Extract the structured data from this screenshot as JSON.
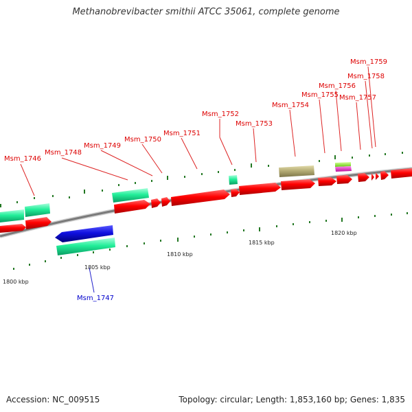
{
  "title": "Methanobrevibacter smithii ATCC 35061, complete genome",
  "footer": {
    "accession": "Accession: NC_009515",
    "summary": "Topology: circular; Length: 1,853,160 bp; Genes: 1,835"
  },
  "colors": {
    "forward_gene": "#ff0000",
    "reverse_gene": "#1010e0",
    "highlight_gene": "#22ee99",
    "tan_gene": "#b5ad75",
    "lime_gene": "#88ee22",
    "magenta_gene": "#ee22cc",
    "backbone": "#888888",
    "tick": "#227722",
    "label_forward": "#dd0000",
    "label_reverse": "#0000cc"
  },
  "axis": {
    "unit": "kbp",
    "tick_labels": [
      {
        "kbp": 1800,
        "text": "1800 kbp"
      },
      {
        "kbp": 1805,
        "text": "1805 kbp"
      },
      {
        "kbp": 1810,
        "text": "1810 kbp"
      },
      {
        "kbp": 1815,
        "text": "1815 kbp"
      },
      {
        "kbp": 1820,
        "text": "1820 kbp"
      }
    ]
  },
  "gene_labels": [
    {
      "name": "Msm_1746",
      "strand": "forward"
    },
    {
      "name": "Msm_1747",
      "strand": "reverse"
    },
    {
      "name": "Msm_1748",
      "strand": "forward"
    },
    {
      "name": "Msm_1749",
      "strand": "forward"
    },
    {
      "name": "Msm_1750",
      "strand": "forward"
    },
    {
      "name": "Msm_1751",
      "strand": "forward"
    },
    {
      "name": "Msm_1752",
      "strand": "forward"
    },
    {
      "name": "Msm_1753",
      "strand": "forward"
    },
    {
      "name": "Msm_1754",
      "strand": "forward"
    },
    {
      "name": "Msm_1755",
      "strand": "forward"
    },
    {
      "name": "Msm_1756",
      "strand": "forward"
    },
    {
      "name": "Msm_1757",
      "strand": "forward"
    },
    {
      "name": "Msm_1758",
      "strand": "forward"
    },
    {
      "name": "Msm_1759",
      "strand": "forward"
    }
  ]
}
